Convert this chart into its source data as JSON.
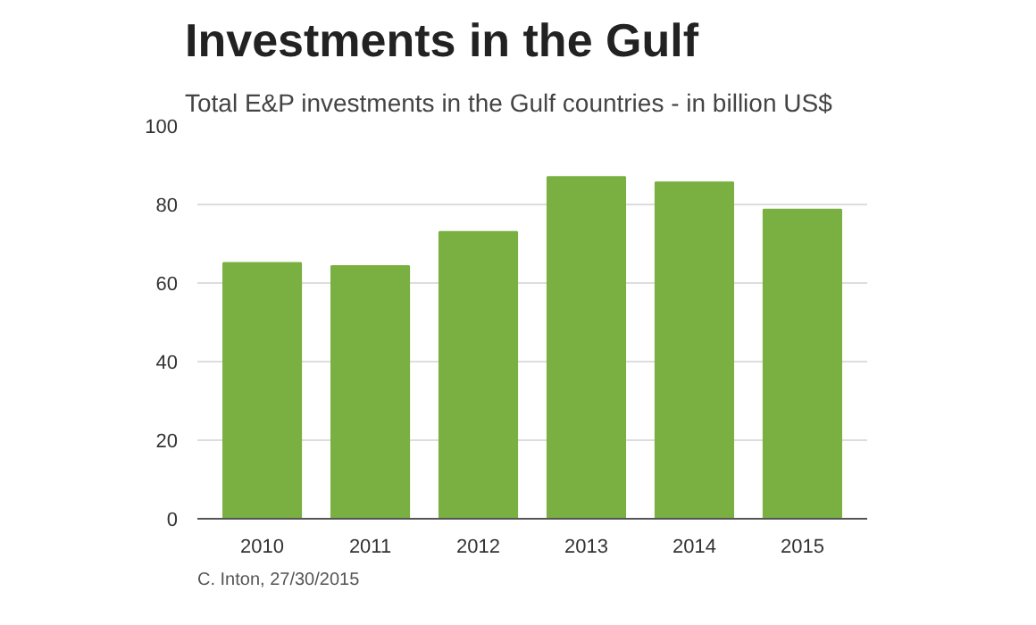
{
  "chart_data": {
    "type": "bar",
    "title": "Investments in the Gulf",
    "subtitle": "Total E&P investments in the Gulf countries - in billion US$",
    "categories": [
      "2010",
      "2011",
      "2012",
      "2013",
      "2014",
      "2015"
    ],
    "values": [
      65.1,
      64.3,
      73.0,
      87.0,
      85.6,
      78.7
    ],
    "color": "#79b041",
    "ylim": [
      0,
      100
    ],
    "yticks": [
      0,
      20,
      40,
      60,
      80,
      100
    ],
    "grid": "y",
    "annotations": [
      "C. Inton, 27/30/2015"
    ]
  }
}
